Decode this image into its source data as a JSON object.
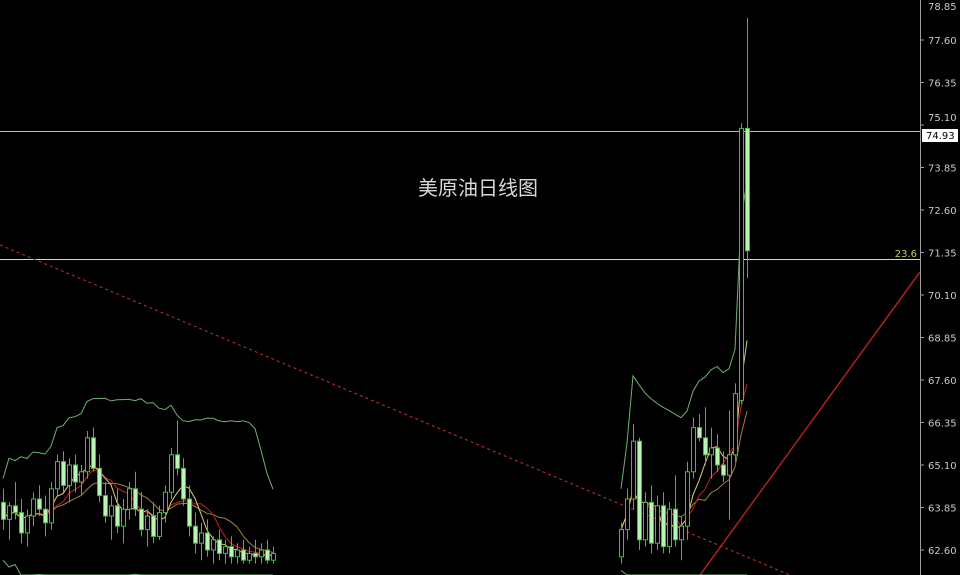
{
  "chart_data": {
    "type": "candlestick",
    "title": "美原油日线图",
    "y_axis": {
      "position": "right",
      "ylim": [
        62.2,
        79.0
      ],
      "tick_labels": [
        "78.85",
        "77.60",
        "76.35",
        "75.10",
        "73.85",
        "72.60",
        "71.35",
        "70.10",
        "68.85",
        "67.60",
        "66.35",
        "65.10",
        "63.85",
        "62.60"
      ]
    },
    "current_price_label": "74.93",
    "horizontal_lines": [
      {
        "price": 74.93,
        "color": "#b8c0c8"
      },
      {
        "price": 71.15,
        "color": "#d8e09a",
        "label": "23.6"
      }
    ],
    "fib_label": "23.6",
    "grid": false,
    "colors": {
      "background": "#000000",
      "candle": "#3fbf3f",
      "candle_fill_bear": "#b8f7b0",
      "ma_fast": "#e0d070",
      "ma_mid": "#c02020",
      "ma_slow": "#a08040",
      "bollinger": "#70b070",
      "trend_dashed": "#c03030",
      "trend_solid": "#b02020"
    },
    "candles_left": [
      [
        64.0,
        64.4,
        63.2,
        63.5
      ],
      [
        63.5,
        64.0,
        62.9,
        63.9
      ],
      [
        63.9,
        64.6,
        63.5,
        63.7
      ],
      [
        63.7,
        64.1,
        62.8,
        63.1
      ],
      [
        63.1,
        63.8,
        62.7,
        63.6
      ],
      [
        63.6,
        64.3,
        63.3,
        64.1
      ],
      [
        64.1,
        64.5,
        63.6,
        63.8
      ],
      [
        63.8,
        64.2,
        63.0,
        63.4
      ],
      [
        63.4,
        64.6,
        63.2,
        64.4
      ],
      [
        64.4,
        65.4,
        64.2,
        65.2
      ],
      [
        65.2,
        65.5,
        64.3,
        64.5
      ],
      [
        64.5,
        65.3,
        64.0,
        65.1
      ],
      [
        65.1,
        65.4,
        64.3,
        64.6
      ],
      [
        64.6,
        65.1,
        64.2,
        64.9
      ],
      [
        64.9,
        66.1,
        64.7,
        65.9
      ],
      [
        65.9,
        66.2,
        64.9,
        65.0
      ],
      [
        65.0,
        65.4,
        64.0,
        64.2
      ],
      [
        64.2,
        64.6,
        63.4,
        63.6
      ],
      [
        63.6,
        64.2,
        62.9,
        63.9
      ],
      [
        63.9,
        64.4,
        63.1,
        63.3
      ],
      [
        63.3,
        64.1,
        62.8,
        63.8
      ],
      [
        63.8,
        64.6,
        63.5,
        64.4
      ],
      [
        64.4,
        64.9,
        63.6,
        63.8
      ],
      [
        63.8,
        64.3,
        63.0,
        63.2
      ],
      [
        63.2,
        63.8,
        62.7,
        63.6
      ],
      [
        63.6,
        64.0,
        62.8,
        63.0
      ],
      [
        63.0,
        63.9,
        62.9,
        63.7
      ],
      [
        63.7,
        64.5,
        63.4,
        64.3
      ],
      [
        64.3,
        65.6,
        64.1,
        65.4
      ],
      [
        65.4,
        66.4,
        64.8,
        65.0
      ],
      [
        65.0,
        65.3,
        63.9,
        64.1
      ],
      [
        64.1,
        64.5,
        63.0,
        63.3
      ],
      [
        63.3,
        63.7,
        62.5,
        62.8
      ],
      [
        62.8,
        63.4,
        62.3,
        63.1
      ],
      [
        63.1,
        63.5,
        62.4,
        62.6
      ],
      [
        62.6,
        63.0,
        62.2,
        62.9
      ],
      [
        62.9,
        63.2,
        62.3,
        62.5
      ],
      [
        62.5,
        62.9,
        62.2,
        62.7
      ],
      [
        62.7,
        63.0,
        62.2,
        62.4
      ],
      [
        62.4,
        62.8,
        62.2,
        62.6
      ],
      [
        62.6,
        62.9,
        62.2,
        62.3
      ],
      [
        62.3,
        62.7,
        62.2,
        62.5
      ],
      [
        62.5,
        62.9,
        62.2,
        62.4
      ],
      [
        62.4,
        62.8,
        62.2,
        62.6
      ],
      [
        62.6,
        62.9,
        62.2,
        62.3
      ],
      [
        62.3,
        62.7,
        62.2,
        62.5
      ]
    ],
    "candles_right": [
      [
        62.4,
        63.4,
        62.2,
        63.2
      ],
      [
        63.2,
        64.4,
        62.9,
        64.1
      ],
      [
        64.1,
        66.3,
        63.8,
        65.8
      ],
      [
        65.8,
        65.9,
        62.6,
        62.9
      ],
      [
        62.9,
        64.3,
        62.7,
        64.0
      ],
      [
        64.0,
        64.5,
        62.5,
        62.8
      ],
      [
        62.8,
        64.2,
        62.6,
        63.9
      ],
      [
        63.9,
        64.3,
        62.5,
        62.7
      ],
      [
        62.7,
        64.0,
        62.5,
        63.8
      ],
      [
        63.8,
        64.8,
        62.7,
        62.9
      ],
      [
        62.9,
        63.6,
        62.3,
        63.3
      ],
      [
        63.3,
        65.2,
        62.9,
        64.9
      ],
      [
        64.9,
        66.5,
        64.7,
        66.2
      ],
      [
        66.2,
        66.6,
        65.8,
        65.9
      ],
      [
        65.9,
        66.8,
        65.1,
        65.4
      ],
      [
        65.4,
        66.2,
        64.7,
        65.6
      ],
      [
        65.6,
        66.0,
        64.9,
        65.1
      ],
      [
        65.1,
        65.5,
        64.6,
        64.8
      ],
      [
        64.8,
        66.7,
        63.5,
        65.4
      ],
      [
        65.4,
        67.5,
        65.2,
        67.2
      ],
      [
        67.0,
        75.15,
        66.9,
        75.0
      ],
      [
        75.0,
        78.25,
        70.6,
        71.4
      ]
    ]
  }
}
